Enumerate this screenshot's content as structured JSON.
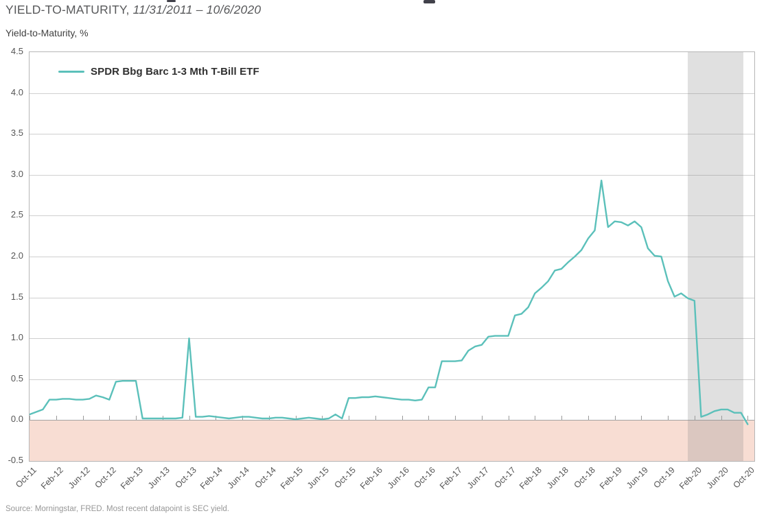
{
  "header": {
    "title": "YIELD-TO-MATURITY,",
    "date_range": "11/31/2011 – 10/6/2020"
  },
  "footer": {
    "source": "Source: Morningstar, FRED. Most recent datapoint is SEC yield."
  },
  "chart_data": {
    "type": "line",
    "title": "YIELD-TO-MATURITY, 11/31/2011 – 10/6/2020",
    "ylabel": "Yield-to-Maturity, %",
    "ylim": [
      -0.5,
      4.5
    ],
    "y_tick_labels": [
      "4.5",
      "4.0",
      "3.5",
      "3.0",
      "2.5",
      "2.0",
      "1.5",
      "1.0",
      "0.5",
      "0.0",
      "-0.5"
    ],
    "x_tick_labels": [
      "Oct-11",
      "Feb-12",
      "Jun-12",
      "Oct-12",
      "Feb-13",
      "Jun-13",
      "Oct-13",
      "Feb-14",
      "Jun-14",
      "Oct-14",
      "Feb-15",
      "Jun-15",
      "Oct-15",
      "Feb-16",
      "Jun-16",
      "Oct-16",
      "Feb-17",
      "Jun-17",
      "Oct-17",
      "Feb-18",
      "Jun-18",
      "Oct-18",
      "Feb-19",
      "Jun-19",
      "Oct-19",
      "Feb-20",
      "Jun-20",
      "Oct-20"
    ],
    "x_tick_interval_months": 4,
    "x_start": "Oct-2011",
    "x_frequency": "monthly",
    "grid": "horizontal",
    "legend_position": "top-left",
    "series": [
      {
        "name": "SPDR Bbg Barc 1-3 Mth T-Bill ETF",
        "color": "#5BC0BA",
        "values": [
          0.07,
          0.1,
          0.13,
          0.25,
          0.25,
          0.26,
          0.26,
          0.25,
          0.25,
          0.26,
          0.3,
          0.28,
          0.25,
          0.47,
          0.48,
          0.48,
          0.48,
          0.02,
          0.02,
          0.02,
          0.02,
          0.02,
          0.02,
          0.03,
          1.0,
          0.04,
          0.04,
          0.05,
          0.04,
          0.03,
          0.02,
          0.03,
          0.04,
          0.04,
          0.03,
          0.02,
          0.02,
          0.03,
          0.03,
          0.02,
          0.01,
          0.02,
          0.03,
          0.02,
          0.01,
          0.02,
          0.07,
          0.02,
          0.27,
          0.27,
          0.28,
          0.28,
          0.29,
          0.28,
          0.27,
          0.26,
          0.25,
          0.25,
          0.24,
          0.25,
          0.4,
          0.4,
          0.72,
          0.72,
          0.72,
          0.73,
          0.85,
          0.9,
          0.92,
          1.02,
          1.03,
          1.03,
          1.03,
          1.28,
          1.3,
          1.38,
          1.55,
          1.62,
          1.7,
          1.83,
          1.85,
          1.93,
          2.0,
          2.08,
          2.22,
          2.32,
          2.93,
          2.36,
          2.43,
          2.42,
          2.38,
          2.43,
          2.36,
          2.1,
          2.01,
          2.0,
          1.7,
          1.51,
          1.55,
          1.49,
          1.46,
          0.04,
          0.07,
          0.11,
          0.13,
          0.13,
          0.09,
          0.09,
          -0.05
        ]
      }
    ],
    "shaded_regions": [
      {
        "name": "negative-yield-zone",
        "axis": "y",
        "from": -0.5,
        "to": 0.0,
        "color": "#F8DDD3"
      },
      {
        "name": "recession-shading",
        "axis": "x",
        "from_month_index": 99,
        "to_month_index": 107.4,
        "color": "rgba(145,145,145,0.28)"
      }
    ]
  }
}
